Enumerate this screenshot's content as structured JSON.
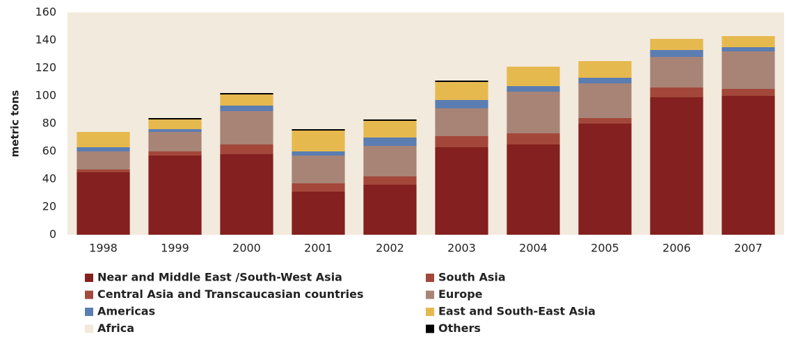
{
  "chart_data": {
    "type": "bar",
    "stacked": true,
    "y_label": "metric tons",
    "categories": [
      "1998",
      "1999",
      "2000",
      "2001",
      "2002",
      "2003",
      "2004",
      "2005",
      "2006",
      "2007"
    ],
    "series": [
      {
        "name": "Near and Middle East /South-West Asia",
        "color": "#84201f",
        "values": [
          45,
          57,
          58,
          31,
          36,
          63,
          65,
          80,
          99,
          100
        ]
      },
      {
        "name": "South Asia",
        "color": "#a3473a",
        "values": [
          2,
          3,
          7,
          6,
          6,
          8,
          8,
          4,
          7,
          5
        ]
      },
      {
        "name": "Central Asia  and Transcaucasian countries",
        "color": "#a24a3c",
        "values": [
          0,
          0,
          0,
          0,
          0,
          0,
          0,
          0,
          0,
          0
        ]
      },
      {
        "name": "Europe",
        "color": "#a88476",
        "values": [
          13,
          14,
          24,
          20,
          22,
          20,
          30,
          25,
          22,
          27
        ]
      },
      {
        "name": "Americas",
        "color": "#5b7db1",
        "values": [
          3,
          2,
          4,
          3,
          6,
          6,
          4,
          4,
          5,
          3
        ]
      },
      {
        "name": "East and South-East Asia",
        "color": "#e6b94f",
        "values": [
          11,
          7,
          8,
          15,
          12,
          13,
          14,
          12,
          8,
          8
        ]
      },
      {
        "name": "Africa",
        "color": "#f2e9db",
        "values": [
          0,
          0,
          0,
          0,
          0,
          0,
          0,
          0,
          0,
          0
        ]
      },
      {
        "name": "Others",
        "color": "#000000",
        "values": [
          0,
          1,
          1,
          1,
          1,
          1,
          0,
          0,
          0,
          0
        ]
      }
    ],
    "ylim": [
      0,
      160
    ],
    "yticks": [
      0,
      20,
      40,
      60,
      80,
      100,
      120,
      140,
      160
    ],
    "grid": false,
    "background": "#f2eadc"
  }
}
